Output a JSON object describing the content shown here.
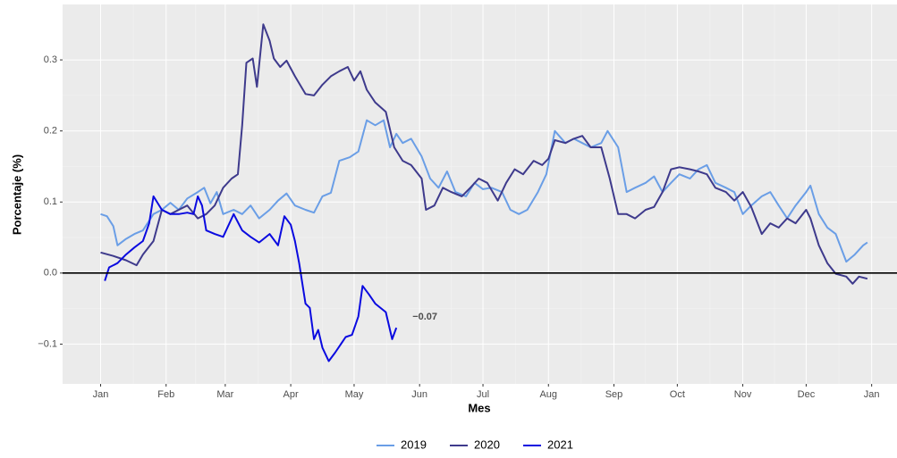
{
  "chart_data": {
    "type": "line",
    "xlabel": "Mes",
    "ylabel": "Porcentaje (%)",
    "xlim": [
      -18,
      377
    ],
    "ylim": [
      -0.156,
      0.378
    ],
    "xticks": [
      {
        "value": 0,
        "label": "Jan"
      },
      {
        "value": 31,
        "label": "Feb"
      },
      {
        "value": 59,
        "label": "Mar"
      },
      {
        "value": 90,
        "label": "Apr"
      },
      {
        "value": 120,
        "label": "May"
      },
      {
        "value": 151,
        "label": "Jun"
      },
      {
        "value": 181,
        "label": "Jul"
      },
      {
        "value": 212,
        "label": "Aug"
      },
      {
        "value": 243,
        "label": "Sep"
      },
      {
        "value": 273,
        "label": "Oct"
      },
      {
        "value": 304,
        "label": "Nov"
      },
      {
        "value": 334,
        "label": "Dec"
      },
      {
        "value": 365,
        "label": "Jan"
      }
    ],
    "yticks": [
      {
        "value": -0.1,
        "label": "−0.1"
      },
      {
        "value": 0,
        "label": "0.0"
      },
      0.1,
      0.2,
      0.3
    ],
    "grid": true,
    "legend": "bottom",
    "annotation": {
      "text": "−0.07",
      "series": 2
    },
    "series": [
      {
        "name": "2019",
        "color": "#6a9ee6",
        "x": [
          0,
          3,
          6,
          8,
          12,
          16,
          20,
          25,
          29,
          33,
          37,
          41,
          46,
          49,
          52,
          55,
          58,
          63,
          67,
          71,
          75,
          80,
          84,
          88,
          92,
          97,
          101,
          105,
          109,
          113,
          118,
          122,
          126,
          130,
          134,
          137,
          140,
          143,
          147,
          152,
          156,
          160,
          164,
          168,
          173,
          177,
          181,
          185,
          190,
          194,
          198,
          202,
          207,
          211,
          215,
          220,
          224,
          228,
          232,
          237,
          240,
          245,
          249,
          253,
          258,
          262,
          266,
          270,
          274,
          279,
          283,
          287,
          291,
          296,
          300,
          304,
          308,
          313,
          317,
          321,
          325,
          329,
          334,
          336,
          340,
          344,
          348,
          353,
          357,
          361,
          363
        ],
        "values": [
          0.083,
          0.08,
          0.066,
          0.039,
          0.048,
          0.055,
          0.06,
          0.083,
          0.089,
          0.099,
          0.089,
          0.105,
          0.114,
          0.12,
          0.098,
          0.114,
          0.083,
          0.089,
          0.083,
          0.095,
          0.077,
          0.089,
          0.102,
          0.112,
          0.095,
          0.089,
          0.085,
          0.108,
          0.113,
          0.158,
          0.163,
          0.171,
          0.215,
          0.208,
          0.215,
          0.177,
          0.196,
          0.183,
          0.189,
          0.164,
          0.133,
          0.12,
          0.143,
          0.114,
          0.108,
          0.127,
          0.118,
          0.12,
          0.114,
          0.089,
          0.083,
          0.089,
          0.114,
          0.139,
          0.2,
          0.183,
          0.189,
          0.183,
          0.177,
          0.183,
          0.2,
          0.177,
          0.114,
          0.12,
          0.127,
          0.136,
          0.114,
          0.127,
          0.139,
          0.133,
          0.146,
          0.152,
          0.127,
          0.12,
          0.114,
          0.083,
          0.095,
          0.108,
          0.114,
          0.095,
          0.077,
          0.095,
          0.114,
          0.123,
          0.083,
          0.064,
          0.055,
          0.016,
          0.026,
          0.039,
          0.043
        ]
      },
      {
        "name": "2020",
        "color": "#3e3a8c",
        "x": [
          0,
          6,
          12,
          17,
          20,
          25,
          29,
          33,
          37,
          41,
          46,
          50,
          54,
          58,
          62,
          65,
          67,
          69,
          72,
          74,
          77,
          80,
          82,
          85,
          88,
          92,
          97,
          101,
          105,
          109,
          113,
          117,
          120,
          123,
          126,
          130,
          135,
          139,
          143,
          147,
          152,
          154,
          158,
          162,
          166,
          171,
          175,
          179,
          183,
          188,
          192,
          196,
          200,
          205,
          209,
          212,
          215,
          220,
          224,
          228,
          232,
          237,
          241,
          245,
          249,
          253,
          258,
          262,
          266,
          270,
          274,
          279,
          283,
          287,
          291,
          296,
          300,
          304,
          308,
          313,
          317,
          321,
          325,
          329,
          334,
          336,
          340,
          344,
          348,
          353,
          356,
          359,
          363
        ],
        "values": [
          0.029,
          0.024,
          0.018,
          0.011,
          0.026,
          0.045,
          0.089,
          0.083,
          0.089,
          0.095,
          0.077,
          0.083,
          0.095,
          0.12,
          0.133,
          0.139,
          0.208,
          0.296,
          0.302,
          0.262,
          0.35,
          0.327,
          0.302,
          0.29,
          0.299,
          0.277,
          0.252,
          0.25,
          0.265,
          0.277,
          0.284,
          0.29,
          0.271,
          0.284,
          0.258,
          0.24,
          0.227,
          0.177,
          0.158,
          0.152,
          0.133,
          0.089,
          0.095,
          0.12,
          0.114,
          0.108,
          0.12,
          0.133,
          0.127,
          0.102,
          0.127,
          0.146,
          0.139,
          0.158,
          0.152,
          0.161,
          0.187,
          0.183,
          0.189,
          0.193,
          0.177,
          0.177,
          0.133,
          0.083,
          0.083,
          0.077,
          0.089,
          0.093,
          0.114,
          0.146,
          0.149,
          0.146,
          0.143,
          0.139,
          0.12,
          0.114,
          0.102,
          0.114,
          0.093,
          0.055,
          0.07,
          0.064,
          0.077,
          0.07,
          0.089,
          0.077,
          0.039,
          0.014,
          -0.001,
          -0.005,
          -0.015,
          -0.005,
          -0.008
        ]
      },
      {
        "name": "2021",
        "color": "#0a0ae0",
        "x": [
          2,
          4,
          8,
          12,
          16,
          20,
          23,
          25,
          29,
          33,
          37,
          41,
          44,
          46,
          48,
          50,
          54,
          58,
          63,
          67,
          71,
          75,
          80,
          84,
          87,
          90,
          92,
          94,
          97,
          99,
          101,
          103,
          105,
          108,
          111,
          116,
          119,
          122,
          124,
          127,
          130,
          135,
          138,
          140
        ],
        "values": [
          -0.011,
          0.008,
          0.014,
          0.026,
          0.036,
          0.045,
          0.07,
          0.108,
          0.089,
          0.083,
          0.083,
          0.085,
          0.083,
          0.108,
          0.095,
          0.06,
          0.055,
          0.051,
          0.083,
          0.06,
          0.051,
          0.043,
          0.055,
          0.039,
          0.08,
          0.068,
          0.045,
          0.014,
          -0.043,
          -0.049,
          -0.093,
          -0.08,
          -0.105,
          -0.124,
          -0.112,
          -0.09,
          -0.087,
          -0.061,
          -0.018,
          -0.03,
          -0.043,
          -0.055,
          -0.093,
          -0.077
        ]
      }
    ]
  }
}
